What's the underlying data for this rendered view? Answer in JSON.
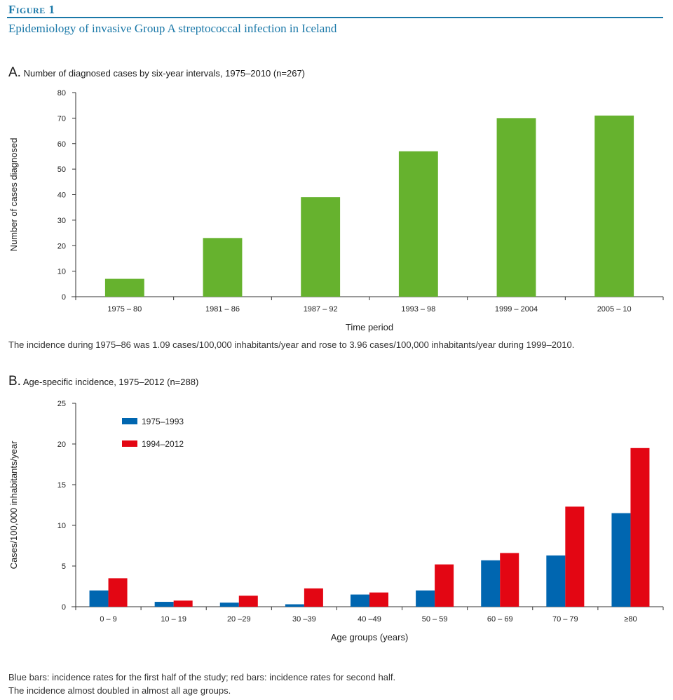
{
  "figure": {
    "label": "Figure 1",
    "title": "Epidemiology of invasive Group A streptococcal infection in Iceland"
  },
  "panel_a": {
    "letter": "A.",
    "title": "Number of diagnosed cases by six-year intervals, 1975–2010 (n=267)",
    "note": "The incidence during 1975–86 was 1.09 cases/100,000 inhabitants/year and rose to 3.96 cases/100,000 inhabitants/year during 1999–2010."
  },
  "panel_b": {
    "letter": "B.",
    "title": "Age-specific incidence, 1975–2012 (n=288)",
    "note_line1": "Blue bars: incidence rates for the first half of the study; red bars: incidence rates for second half.",
    "note_line2": "The incidence almost doubled in almost all age groups."
  },
  "chart_data": [
    {
      "type": "bar",
      "categories": [
        "1975 – 80",
        "1981 – 86",
        "1987 – 92",
        "1993 – 98",
        "1999 – 2004",
        "2005 – 10"
      ],
      "values": [
        7,
        23,
        39,
        57,
        70,
        71
      ],
      "xlabel": "Time period",
      "ylabel": "Number of cases diagnosed",
      "ylim": [
        0,
        80
      ],
      "yticks": [
        0,
        10,
        20,
        30,
        40,
        50,
        60,
        70,
        80
      ],
      "grid": false,
      "colors": {
        "bar": "#66b22e"
      }
    },
    {
      "type": "bar",
      "categories": [
        "0 – 9",
        "10 – 19",
        "20 –29",
        "30 –39",
        "40 –49",
        "50 – 59",
        "60 – 69",
        "70 – 79",
        "≥80"
      ],
      "series": [
        {
          "name": "1975–1993",
          "color": "#0066b0",
          "values": [
            2.0,
            0.6,
            0.5,
            0.3,
            1.5,
            2.0,
            5.7,
            6.3,
            11.5
          ]
        },
        {
          "name": "1994–2012",
          "color": "#e30613",
          "values": [
            3.5,
            0.75,
            1.35,
            2.25,
            1.75,
            5.2,
            6.6,
            12.3,
            19.5
          ]
        }
      ],
      "xlabel": "Age groups (years)",
      "ylabel": "Cases/100,000 inhabitants/year",
      "ylim": [
        0,
        25
      ],
      "yticks": [
        0,
        5,
        10,
        15,
        20,
        25
      ],
      "grid": false,
      "legend": "top-left"
    }
  ]
}
